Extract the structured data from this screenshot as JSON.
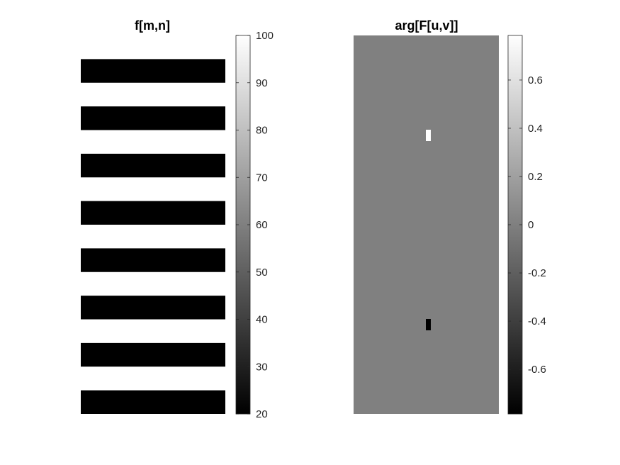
{
  "chart_data": [
    {
      "type": "heatmap",
      "title": "f[m,n]",
      "colormap": "gray",
      "color_range": [
        20,
        100
      ],
      "colorbar_ticks": [
        20,
        30,
        40,
        50,
        60,
        70,
        80,
        90,
        100
      ],
      "pattern": {
        "description_rows": 8,
        "stripe_value": 20,
        "background_value": 100
      }
    },
    {
      "type": "heatmap",
      "title": "arg[F[u,v]]",
      "colormap": "gray",
      "color_range": [
        -0.785,
        0.785
      ],
      "colorbar_ticks": [
        -0.6,
        -0.4,
        -0.2,
        0,
        0.2,
        0.4,
        0.6
      ],
      "pattern": {
        "background_value": 0,
        "spots": [
          {
            "value": 0.785
          },
          {
            "value": -0.785
          }
        ]
      }
    }
  ]
}
